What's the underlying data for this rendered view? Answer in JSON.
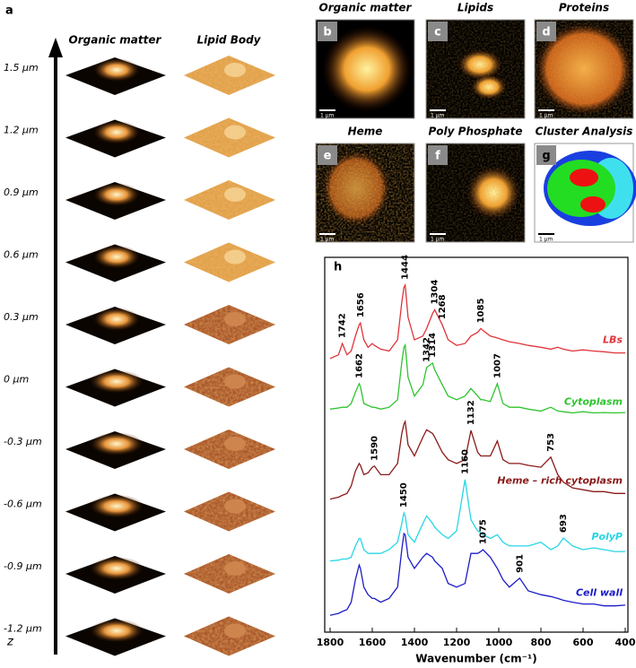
{
  "panel_a": {
    "label": "a",
    "columns": [
      "Organic matter",
      "Lipid Body"
    ],
    "z_levels": [
      "1.5 µm",
      "1.2 µm",
      "0.9 µm",
      "0.6 µm",
      "0.3 µm",
      "0 µm",
      "-0.3  µm",
      "-0.6  µm",
      "-0.9  µm",
      "-1.2 µm"
    ],
    "axis_label": "z"
  },
  "images": [
    {
      "title": "Organic matter",
      "label": "b",
      "scale_bar": "1 µm"
    },
    {
      "title": "Lipids",
      "label": "c",
      "scale_bar": "1 µm"
    },
    {
      "title": "Proteins",
      "label": "d",
      "scale_bar": "1 µm"
    },
    {
      "title": "Heme",
      "label": "e",
      "scale_bar": "1 µm"
    },
    {
      "title": "Poly Phosphate",
      "label": "f",
      "scale_bar": "1 µm"
    },
    {
      "title": "Cluster Analysis",
      "label": "g",
      "scale_bar": "1 µm"
    }
  ],
  "chart_data": {
    "type": "line",
    "panel_label": "h",
    "x_label": "Wavenumber (cm⁻¹)",
    "xlim": [
      1800,
      400
    ],
    "xticks": [
      1800,
      1600,
      1400,
      1200,
      1000,
      800,
      600,
      400
    ],
    "ylim": [
      0,
      100
    ],
    "x": [
      1800,
      1760,
      1742,
      1720,
      1700,
      1680,
      1662,
      1656,
      1640,
      1620,
      1600,
      1590,
      1560,
      1520,
      1480,
      1460,
      1450,
      1444,
      1430,
      1400,
      1360,
      1342,
      1314,
      1304,
      1268,
      1240,
      1200,
      1160,
      1132,
      1100,
      1085,
      1075,
      1040,
      1007,
      980,
      950,
      901,
      860,
      800,
      753,
      720,
      693,
      650,
      600,
      550,
      500,
      450,
      400
    ],
    "series": [
      {
        "name": "LBs",
        "color": "#e0343a",
        "peaks": [
          1742,
          1656,
          1444,
          1304,
          1268,
          1085
        ],
        "values": [
          73,
          74,
          77,
          74,
          75,
          79,
          82,
          82.5,
          78,
          76,
          77,
          76.5,
          75.5,
          75,
          78,
          88,
          92,
          92.6,
          84,
          78,
          79,
          81,
          85,
          86,
          82,
          78,
          76.5,
          77,
          79,
          80,
          81,
          80.5,
          79,
          78.5,
          78,
          77.5,
          77,
          76.5,
          76,
          75.5,
          76,
          75.5,
          75,
          75.3,
          75,
          74.8,
          74.5,
          74.5
        ]
      },
      {
        "name": "Cytoplasm",
        "color": "#2fc42f",
        "peaks": [
          1662,
          1342,
          1314,
          1007
        ],
        "values": [
          59.5,
          59.8,
          60,
          60,
          61,
          64,
          66.3,
          65.5,
          61,
          60.5,
          60,
          60,
          59.5,
          60,
          62,
          72,
          76,
          76.6,
          68,
          63,
          66,
          70.6,
          71.8,
          70,
          66,
          63,
          62,
          63,
          65,
          63,
          62,
          62,
          61.5,
          66.3,
          61,
          60,
          60,
          59.5,
          59,
          60,
          59,
          58.8,
          58.5,
          58.8,
          58.5,
          58.6,
          58.5,
          58.6
        ]
      },
      {
        "name": "Heme – rich cytoplasm",
        "color": "#8b1a1a",
        "peaks": [
          1590,
          1132,
          753
        ],
        "values": [
          35.5,
          36,
          36.5,
          37,
          39,
          43,
          45,
          44.5,
          42,
          42.5,
          44,
          44.3,
          42,
          42,
          45,
          53,
          55.5,
          56.2,
          50,
          47,
          52,
          54,
          53,
          52,
          48,
          46,
          45,
          46,
          53.8,
          48,
          47,
          47,
          47,
          51,
          46,
          45,
          45,
          44.5,
          44,
          46.7,
          42,
          40,
          38.5,
          38,
          37.5,
          37.5,
          37,
          37
        ]
      },
      {
        "name": "PolyP",
        "color": "#27d6e6",
        "peaks": [
          1450,
          1160,
          693
        ],
        "values": [
          19,
          19.2,
          19.5,
          19.5,
          20,
          23,
          25,
          25,
          22,
          21,
          21,
          21,
          21,
          22,
          24,
          29,
          31.8,
          31,
          26,
          24,
          29,
          31,
          29,
          28,
          26,
          25,
          27,
          40.7,
          30,
          27,
          26.5,
          26,
          25,
          26,
          24,
          23,
          23,
          23,
          24,
          22,
          23,
          25.1,
          23,
          22,
          22.5,
          22,
          21.5,
          21.5
        ]
      },
      {
        "name": "Cell wall",
        "color": "#1c1cc8",
        "peaks": [
          1075,
          901
        ],
        "values": [
          4.5,
          5,
          5.5,
          6,
          8,
          14,
          17.9,
          17,
          12,
          10,
          9,
          9,
          8,
          9,
          12,
          22,
          26.3,
          26,
          20,
          17,
          20,
          21,
          20,
          19,
          17,
          13,
          12,
          13,
          21,
          21,
          21.5,
          22,
          20,
          17,
          14,
          12,
          14.4,
          11,
          10,
          9.5,
          9,
          8.5,
          8,
          7.5,
          7.5,
          7,
          7,
          7.2
        ]
      }
    ]
  }
}
